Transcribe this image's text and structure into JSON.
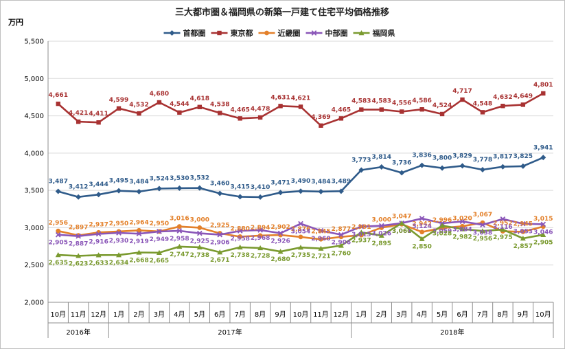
{
  "chart_data": {
    "type": "line",
    "title": "三大都市圏＆福岡県の新築一戸建て住宅平均価格推移",
    "ylabel": "万円",
    "ylim": [
      2000,
      5500
    ],
    "yticks": [
      "2,000",
      "2,500",
      "3,000",
      "3,500",
      "4,000",
      "4,500",
      "5,000",
      "5,500"
    ],
    "categories": [
      "10月",
      "11月",
      "12月",
      "1月",
      "2月",
      "3月",
      "4月",
      "5月",
      "6月",
      "7月",
      "8月",
      "9月",
      "10月",
      "11月",
      "12月",
      "1月",
      "2月",
      "3月",
      "4月",
      "5月",
      "6月",
      "7月",
      "8月",
      "9月",
      "10月"
    ],
    "year_groups": [
      {
        "label": "2016年",
        "start": 0,
        "end": 2
      },
      {
        "label": "2017年",
        "start": 3,
        "end": 14
      },
      {
        "label": "2018年",
        "start": 15,
        "end": 24
      }
    ],
    "legend_position": "top",
    "grid": true,
    "series": [
      {
        "name": "首都圏",
        "color": "#2f5b8a",
        "marker": "diamond",
        "values": [
          3487,
          3412,
          3444,
          3495,
          3484,
          3524,
          3530,
          3532,
          3460,
          3415,
          3410,
          3471,
          3490,
          3484,
          3489,
          3773,
          3814,
          3736,
          3836,
          3800,
          3829,
          3778,
          3817,
          3825,
          3941
        ],
        "labels": [
          "3,487",
          "3,412",
          "3,444",
          "3,495",
          "3,484",
          "3,524",
          "3,530",
          "3,532",
          "3,460",
          "3,415",
          "3,410",
          "3,471",
          "3,490",
          "3,484",
          "3,489",
          "3,773",
          "3,814",
          "3,736",
          "3,836",
          "3,800",
          "3,829",
          "3,778",
          "3,817",
          "3,825",
          "3,941"
        ]
      },
      {
        "name": "東京都",
        "color": "#a83232",
        "marker": "square",
        "values": [
          4661,
          4421,
          4411,
          4599,
          4532,
          4680,
          4544,
          4618,
          4538,
          4465,
          4478,
          4631,
          4621,
          4369,
          4465,
          4583,
          4583,
          4556,
          4586,
          4524,
          4717,
          4548,
          4632,
          4649,
          4801
        ],
        "labels": [
          "4,661",
          "4,421",
          "4,411",
          "4,599",
          "4,532",
          "4,680",
          "4,544",
          "4,618",
          "4,538",
          "4,465",
          "4,478",
          "4,631",
          "4,621",
          "4,369",
          "4,465",
          "4,583",
          "4,583",
          "4,556",
          "4,586",
          "4,524",
          "4,717",
          "4,548",
          "4,632",
          "4,649",
          "4,801"
        ]
      },
      {
        "name": "近畿圏",
        "color": "#e3802a",
        "marker": "circle",
        "values": [
          2956,
          2897,
          2937,
          2950,
          2964,
          2950,
          3016,
          3000,
          2925,
          2880,
          2894,
          2902,
          2876,
          2845,
          2877,
          2901,
          3000,
          3047,
          2942,
          2996,
          3020,
          3067,
          2952,
          2945,
          3015
        ],
        "labels": [
          "2,956",
          "2,897",
          "2,937",
          "2,950",
          "2,964",
          "2,950",
          "3,016",
          "3,000",
          "2,925",
          "2,880",
          "2,894",
          "2,902",
          "2,876",
          "2,845",
          "2,877",
          "2,901",
          "3,000",
          "3,047",
          "2,942",
          "2,996",
          "3,020",
          "3,067",
          "2,952",
          "2,945",
          "3,015"
        ]
      },
      {
        "name": "中部圏",
        "color": "#8a56b8",
        "marker": "x",
        "values": [
          2905,
          2887,
          2916,
          2930,
          2919,
          2949,
          2958,
          2925,
          2906,
          2958,
          2968,
          2926,
          3054,
          2960,
          2906,
          3015,
          3026,
          3061,
          3124,
          3059,
          3084,
          3038,
          3116,
          3053,
          3046
        ],
        "labels": [
          "2,905",
          "2,887",
          "2,916",
          "2,930",
          "2,919",
          "2,949",
          "2,958",
          "2,925",
          "2,906",
          "2,958",
          "2,968",
          "2,926",
          "3,054",
          "2,960",
          "2,906",
          "3,015",
          "3,026",
          "3,061",
          "3,124",
          "3,059",
          "3,084",
          "3,038",
          "3,116",
          "3,053",
          "3,046"
        ]
      },
      {
        "name": "福岡県",
        "color": "#7a9a2f",
        "marker": "triangle",
        "values": [
          2635,
          2623,
          2633,
          2634,
          2668,
          2665,
          2747,
          2738,
          2671,
          2738,
          2728,
          2680,
          2735,
          2721,
          2760,
          2937,
          2895,
          3060,
          2850,
          3028,
          2982,
          2956,
          2975,
          2857,
          2905
        ],
        "labels": [
          "2,635",
          "2,623",
          "2,633",
          "2,634",
          "2,668",
          "2,665",
          "2,747",
          "2,738",
          "2,671",
          "2,738",
          "2,728",
          "2,680",
          "2,735",
          "2,721",
          "2,760",
          "2,937",
          "2,895",
          "3,060",
          "2,850",
          "3,028",
          "2,982",
          "2,956",
          "2,975",
          "2,857",
          "2,905"
        ]
      }
    ]
  }
}
